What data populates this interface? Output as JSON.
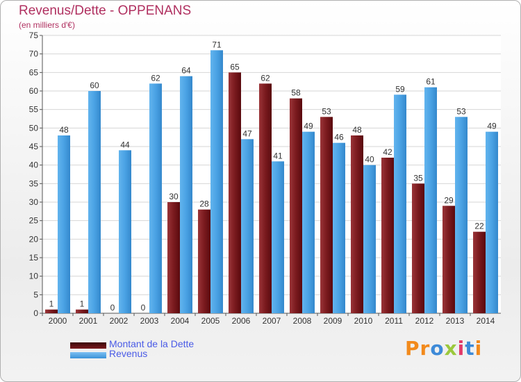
{
  "header": {
    "title": "Revenus/Dette - OPPENANS",
    "subtitle": "(en milliers d'€)"
  },
  "legend": {
    "items": [
      {
        "label": "Montant de la Dette",
        "color": "#6b0f12"
      },
      {
        "label": "Revenus",
        "color": "#4aa2e4"
      }
    ]
  },
  "logo": {
    "letters": [
      {
        "ch": "P",
        "color": "#f28a1c"
      },
      {
        "ch": "r",
        "color": "#f28a1c"
      },
      {
        "ch": "o",
        "color": "#3d8ad8"
      },
      {
        "ch": "x",
        "color": "#9bc83c"
      },
      {
        "ch": "i",
        "color": "#e23a6a"
      },
      {
        "ch": "t",
        "color": "#3d8ad8"
      },
      {
        "ch": "i",
        "color": "#f28a1c"
      }
    ]
  },
  "chart_data": {
    "type": "bar",
    "title": "Revenus/Dette - OPPENANS",
    "subtitle": "(en milliers d'€)",
    "categories": [
      "2000",
      "2001",
      "2002",
      "2003",
      "2004",
      "2005",
      "2006",
      "2007",
      "2008",
      "2009",
      "2010",
      "2011",
      "2012",
      "2013",
      "2014"
    ],
    "series": [
      {
        "name": "Montant de la Dette",
        "color": "#7a1a1e",
        "values": [
          1,
          1,
          0,
          0,
          30,
          28,
          65,
          62,
          58,
          53,
          48,
          42,
          35,
          29,
          22
        ]
      },
      {
        "name": "Revenus",
        "color": "#4aa2e4",
        "values": [
          48,
          60,
          44,
          62,
          64,
          71,
          47,
          41,
          49,
          46,
          40,
          59,
          61,
          53,
          49
        ]
      }
    ],
    "yticks": [
      0,
      5,
      10,
      15,
      20,
      25,
      30,
      35,
      40,
      45,
      50,
      55,
      60,
      65,
      70,
      75
    ],
    "ylim": [
      0,
      75
    ],
    "grid": true,
    "legend_position": "bottom-left"
  }
}
